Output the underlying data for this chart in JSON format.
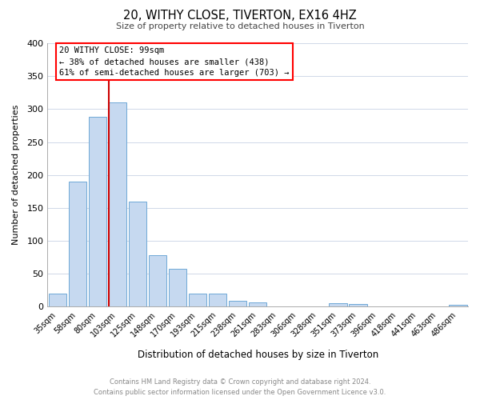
{
  "title": "20, WITHY CLOSE, TIVERTON, EX16 4HZ",
  "subtitle": "Size of property relative to detached houses in Tiverton",
  "xlabel": "Distribution of detached houses by size in Tiverton",
  "ylabel": "Number of detached properties",
  "bar_labels": [
    "35sqm",
    "58sqm",
    "80sqm",
    "103sqm",
    "125sqm",
    "148sqm",
    "170sqm",
    "193sqm",
    "215sqm",
    "238sqm",
    "261sqm",
    "283sqm",
    "306sqm",
    "328sqm",
    "351sqm",
    "373sqm",
    "396sqm",
    "418sqm",
    "441sqm",
    "463sqm",
    "486sqm"
  ],
  "bar_values": [
    20,
    190,
    288,
    310,
    160,
    78,
    58,
    20,
    20,
    9,
    6,
    0,
    0,
    0,
    5,
    4,
    0,
    0,
    0,
    0,
    3
  ],
  "bar_color": "#c6d9f0",
  "bar_edge_color": "#6fa8d6",
  "property_line_color": "#cc0000",
  "ylim": [
    0,
    400
  ],
  "yticks": [
    0,
    50,
    100,
    150,
    200,
    250,
    300,
    350,
    400
  ],
  "annotation_title": "20 WITHY CLOSE: 99sqm",
  "annotation_line1": "← 38% of detached houses are smaller (438)",
  "annotation_line2": "61% of semi-detached houses are larger (703) →",
  "footer_line1": "Contains HM Land Registry data © Crown copyright and database right 2024.",
  "footer_line2": "Contains public sector information licensed under the Open Government Licence v3.0.",
  "background_color": "#ffffff",
  "grid_color": "#d0d8e8"
}
